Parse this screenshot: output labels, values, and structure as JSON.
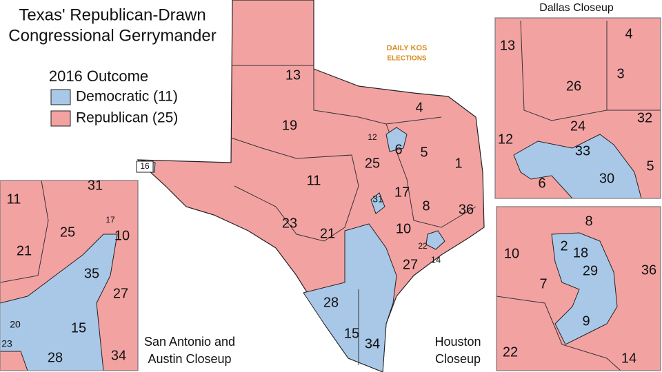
{
  "title": [
    "Texas' Republican-Drawn",
    "Congressional Gerrymander"
  ],
  "legend": {
    "title": "2016 Outcome",
    "items": [
      {
        "label": "Democratic (11)",
        "color": "#a9c8e8"
      },
      {
        "label": "Republican (25)",
        "color": "#f3a2a2"
      }
    ]
  },
  "logo": [
    "DAILY KOS",
    "ELECTIONS"
  ],
  "main_map": {
    "districts": [
      "16",
      "13",
      "19",
      "4",
      "12",
      "6",
      "5",
      "1",
      "25",
      "11",
      "17",
      "31",
      "8",
      "36",
      "23",
      "21",
      "10",
      "22",
      "14",
      "27",
      "28",
      "15",
      "34"
    ]
  },
  "dallas_closeup": {
    "title": "Dallas Closeup",
    "districts": [
      "13",
      "4",
      "3",
      "26",
      "12",
      "24",
      "32",
      "33",
      "6",
      "30",
      "5"
    ]
  },
  "san_antonio_closeup": {
    "title": [
      "San Antonio and",
      "Austin Closeup"
    ],
    "districts": [
      "11",
      "31",
      "25",
      "10",
      "21",
      "17",
      "35",
      "27",
      "20",
      "15",
      "23",
      "28",
      "34"
    ]
  },
  "houston_closeup": {
    "title": [
      "Houston",
      "Closeup"
    ],
    "districts": [
      "8",
      "10",
      "2",
      "18",
      "36",
      "29",
      "7",
      "9",
      "22",
      "14"
    ]
  }
}
